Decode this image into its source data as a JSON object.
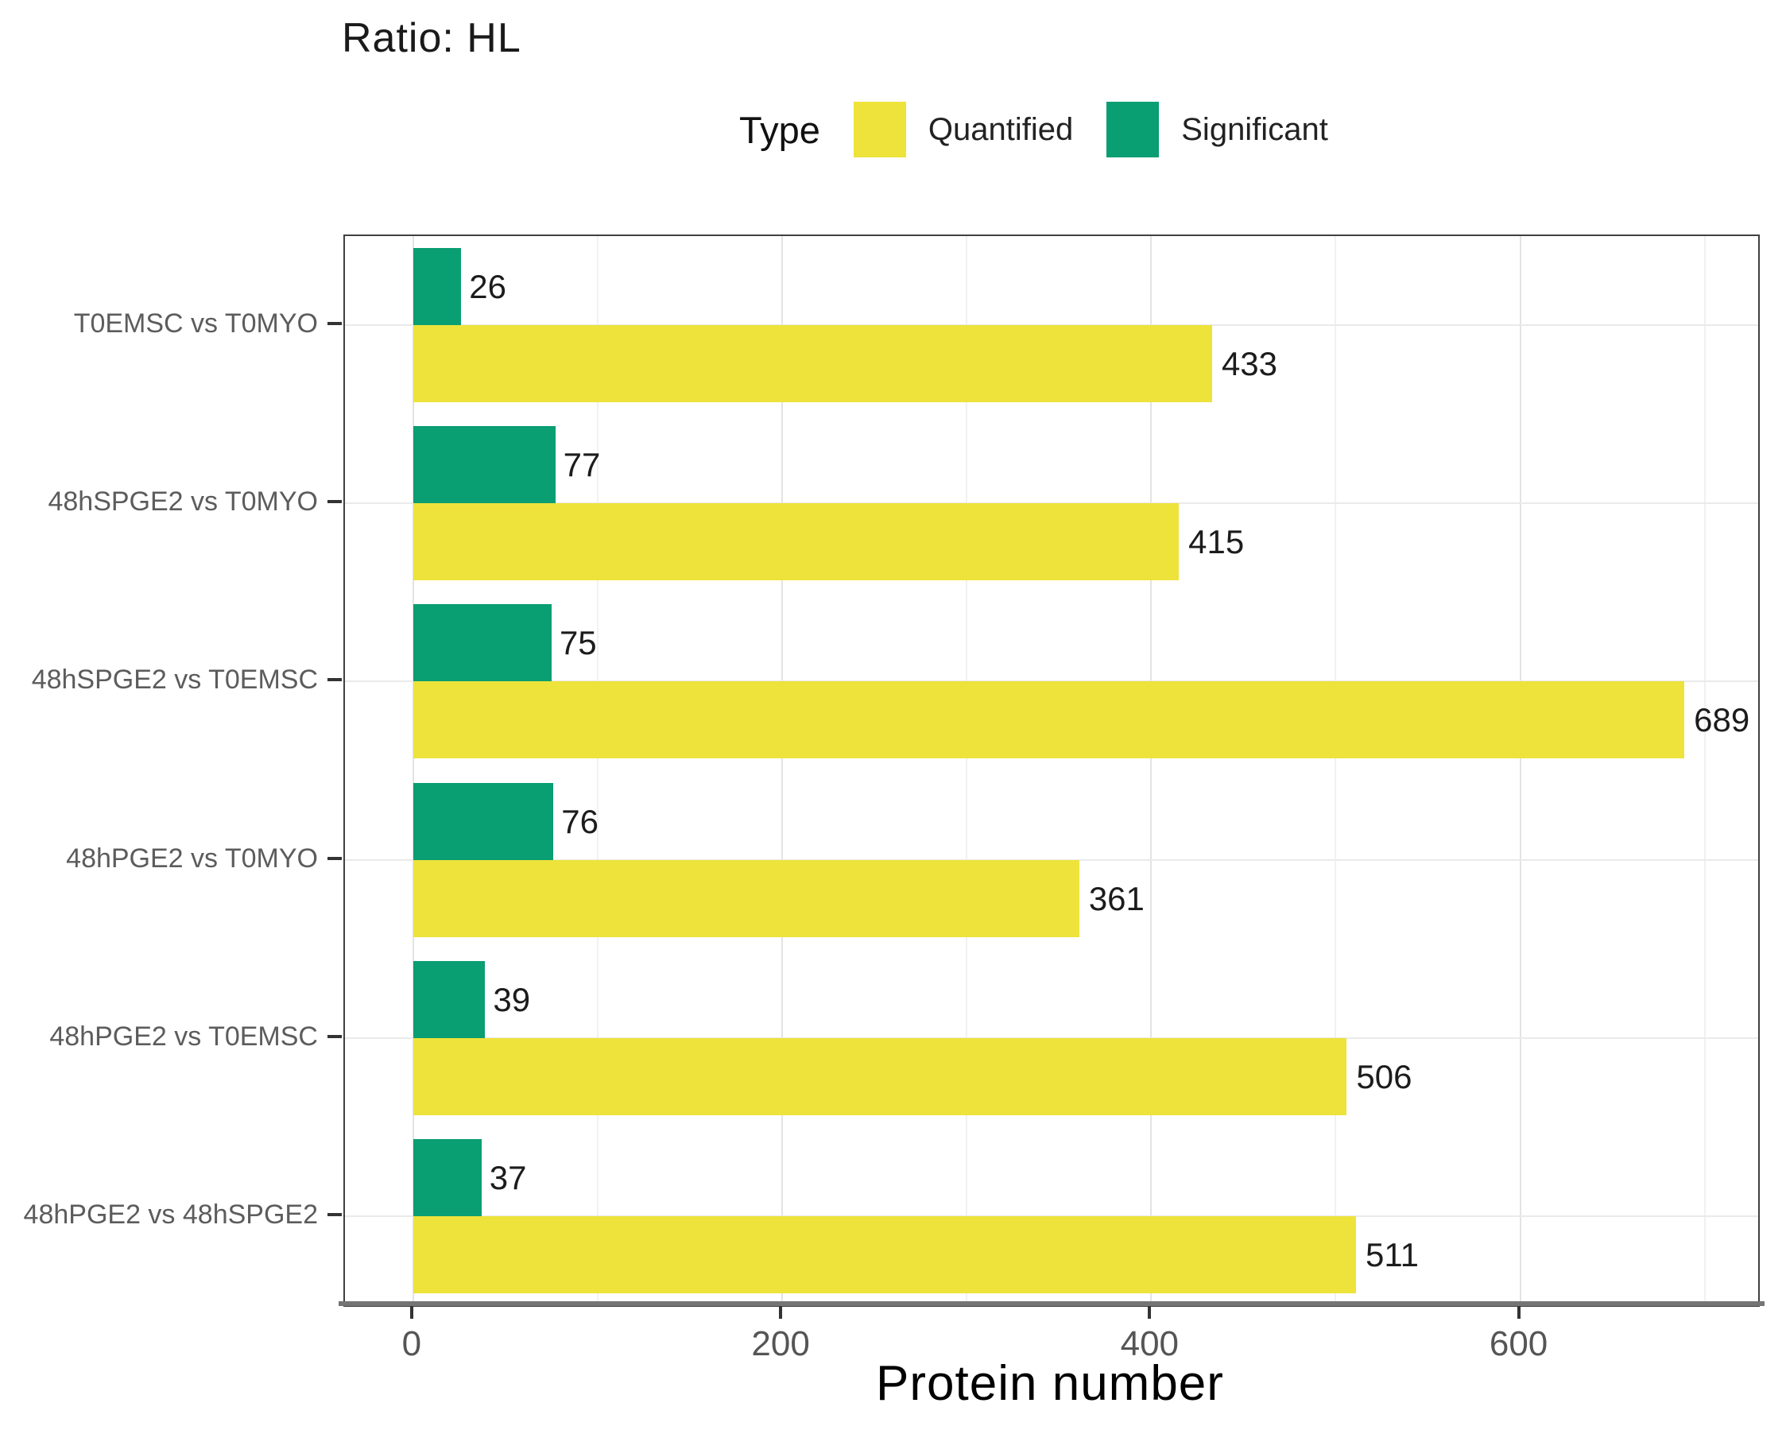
{
  "figure": {
    "title": "Ratio: HL"
  },
  "legend": {
    "title": "Type",
    "items": [
      {
        "label": "Quantified",
        "color": "#EDE33B"
      },
      {
        "label": "Significant",
        "color": "#0A9E73"
      }
    ]
  },
  "chart_data": {
    "type": "bar",
    "orientation": "horizontal",
    "title": "Ratio: HL",
    "xlabel": "Protein number",
    "ylabel": "",
    "categories": [
      "T0EMSC vs T0MYO",
      "48hSPGE2 vs T0MYO",
      "48hSPGE2 vs T0EMSC",
      "48hPGE2 vs T0MYO",
      "48hPGE2 vs T0EMSC",
      "48hPGE2 vs 48hSPGE2"
    ],
    "series": [
      {
        "name": "Significant",
        "color": "#0A9E73",
        "values": [
          26,
          77,
          75,
          76,
          39,
          37
        ]
      },
      {
        "name": "Quantified",
        "color": "#EDE33B",
        "values": [
          433,
          415,
          689,
          361,
          506,
          511
        ]
      }
    ],
    "bar_order_within_group": [
      "Significant",
      "Quantified"
    ],
    "x_ticks": [
      0,
      200,
      400,
      600
    ],
    "x_gridlines_major": [
      0,
      200,
      400,
      600
    ],
    "x_gridlines_minor": [
      100,
      300,
      500,
      700
    ],
    "xlim": [
      0,
      730
    ],
    "grid": true,
    "legend_position": "top"
  }
}
